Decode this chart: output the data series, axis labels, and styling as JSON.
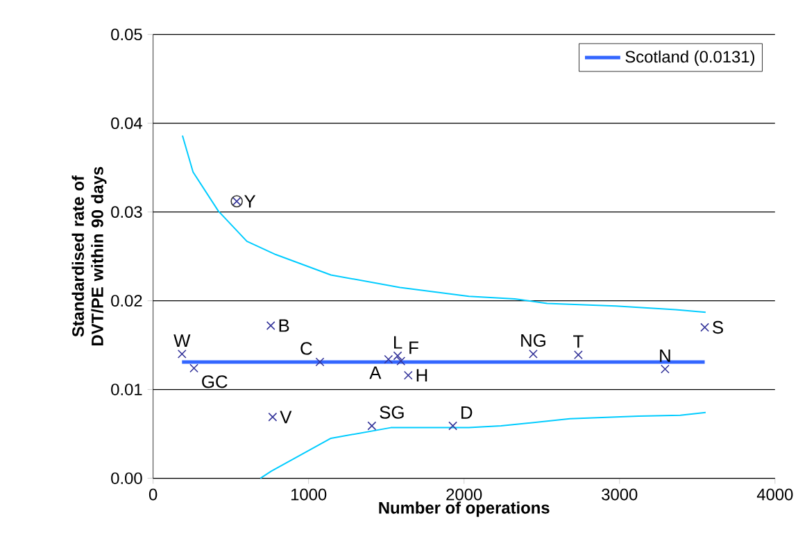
{
  "chart_data": {
    "type": "scatter",
    "xlabel": "Number of operations",
    "ylabel": "Standardised rate of DVT/PE within 90 days",
    "xlim": [
      0,
      4000
    ],
    "ylim": [
      0,
      0.05
    ],
    "xticks": [
      0,
      1000,
      2000,
      3000,
      4000
    ],
    "yticks": [
      {
        "value": 0,
        "label": "0.00"
      },
      {
        "value": 0.01,
        "label": "0.01"
      },
      {
        "value": 0.02,
        "label": "0.02"
      },
      {
        "value": 0.03,
        "label": "0.03"
      },
      {
        "value": 0.04,
        "label": "0.04"
      },
      {
        "value": 0.05,
        "label": "0.05"
      }
    ],
    "grid": "y",
    "legend": "top right",
    "series": [
      {
        "type": "line",
        "color": "#00ccff",
        "marker": "none",
        "x": [
          189,
          257,
          420,
          603,
          789,
          1144,
          1588,
          2031,
          2327,
          2534,
          2977,
          3361,
          3554
        ],
        "values": [
          0.0386,
          0.0345,
          0.0301,
          0.0267,
          0.0252,
          0.0229,
          0.0215,
          0.0205,
          0.0202,
          0.0197,
          0.0194,
          0.019,
          0.0187
        ]
      },
      {
        "type": "line",
        "color": "#00ccff",
        "marker": "none",
        "x": [
          690,
          760,
          1144,
          1529,
          2031,
          2238,
          2681,
          3123,
          3391,
          3554
        ],
        "values": [
          0.0,
          0.0008,
          0.0045,
          0.0057,
          0.0057,
          0.0059,
          0.0067,
          0.007,
          0.0071,
          0.0074
        ]
      },
      {
        "type": "line",
        "name": "Scotland (0.0131)",
        "color": "#3366ff",
        "marker": "none",
        "x": [
          186,
          3548
        ],
        "values": [
          0.0131,
          0.0131
        ]
      },
      {
        "color": "#333399",
        "marker": "cross",
        "x": [
          186,
          263,
          538,
          757,
          769,
          1073,
          1514,
          1573,
          1594,
          1641,
          1407,
          1928,
          2445,
          2735,
          3293,
          3548
        ],
        "values": [
          0.014,
          0.0124,
          0.0312,
          0.0172,
          0.0069,
          0.0131,
          0.0134,
          0.0138,
          0.0132,
          0.0116,
          0.0059,
          0.0059,
          0.014,
          0.0139,
          0.0123,
          0.017
        ]
      },
      {
        "color": "#333333",
        "marker": "circle",
        "x": [
          538
        ],
        "values": [
          0.0312
        ]
      }
    ],
    "annotations": [
      {
        "text": "W",
        "x": 186,
        "y": 0.014
      },
      {
        "text": "GC",
        "x": 263,
        "y": 0.0124
      },
      {
        "text": "Y",
        "x": 538,
        "y": 0.0312
      },
      {
        "text": "B",
        "x": 757,
        "y": 0.0172
      },
      {
        "text": "V",
        "x": 769,
        "y": 0.0069
      },
      {
        "text": "C",
        "x": 1073,
        "y": 0.0131
      },
      {
        "text": "A",
        "x": 1514,
        "y": 0.0134
      },
      {
        "text": "L",
        "x": 1573,
        "y": 0.0138
      },
      {
        "text": "F",
        "x": 1594,
        "y": 0.0132
      },
      {
        "text": "H",
        "x": 1641,
        "y": 0.0116
      },
      {
        "text": "SG",
        "x": 1407,
        "y": 0.0059
      },
      {
        "text": "D",
        "x": 1928,
        "y": 0.0059
      },
      {
        "text": "NG",
        "x": 2445,
        "y": 0.014
      },
      {
        "text": "T",
        "x": 2735,
        "y": 0.0139
      },
      {
        "text": "N",
        "x": 3293,
        "y": 0.0123
      },
      {
        "text": "S",
        "x": 3548,
        "y": 0.017
      }
    ]
  }
}
